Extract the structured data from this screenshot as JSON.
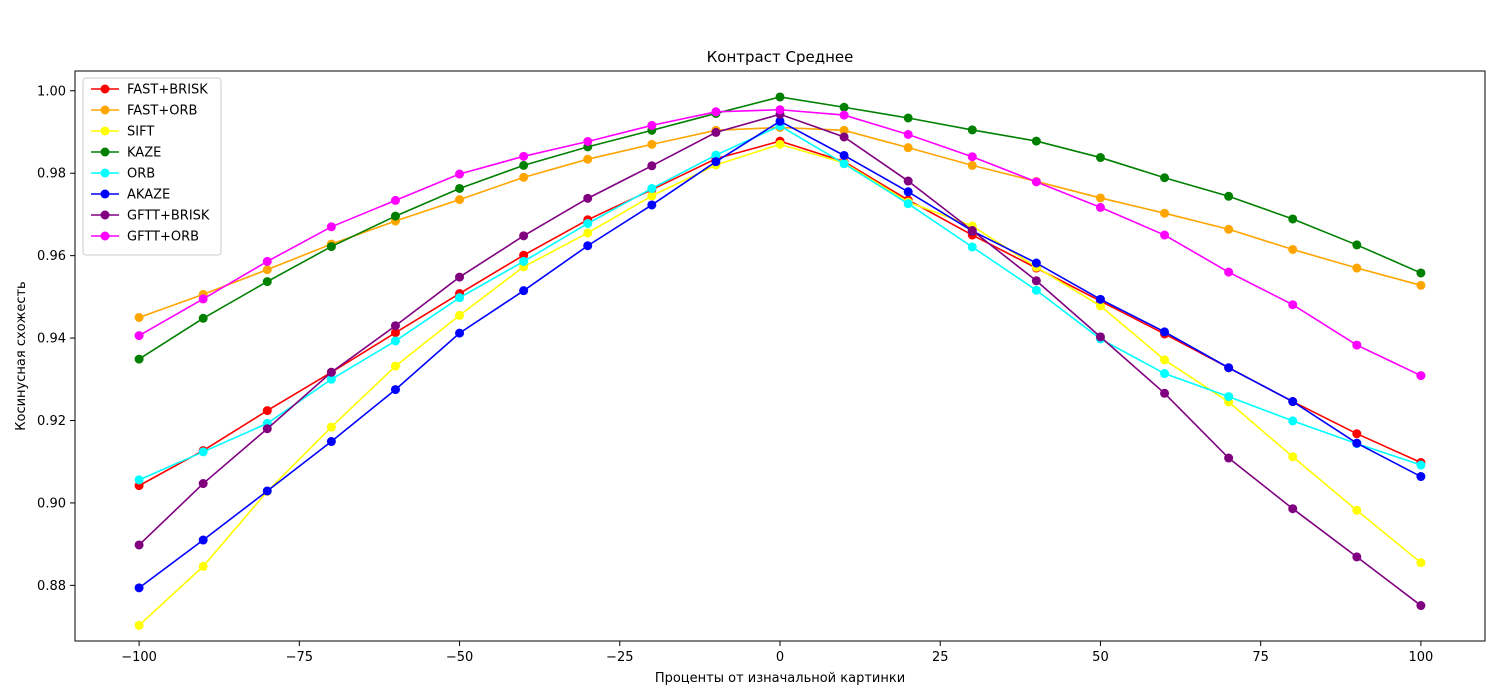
{
  "chart_data": {
    "type": "line",
    "title": "Контраст Среднее",
    "xlabel": "Проценты от изначальной картинки",
    "ylabel": "Косинусная схожесть",
    "xlim": [
      -110,
      110
    ],
    "ylim": [
      0.8665,
      1.0048
    ],
    "xticks": [
      -100,
      -75,
      -50,
      -25,
      0,
      25,
      50,
      75,
      100
    ],
    "yticks": [
      0.88,
      0.9,
      0.92,
      0.94,
      0.96,
      0.98,
      1.0
    ],
    "xtick_labels": [
      "−100",
      "−75",
      "−50",
      "−25",
      "0",
      "25",
      "50",
      "75",
      "100"
    ],
    "ytick_labels": [
      "0.88",
      "0.90",
      "0.92",
      "0.94",
      "0.96",
      "0.98",
      "1.00"
    ],
    "grid": false,
    "legend_position": "top-left",
    "x": [
      -100,
      -90,
      -80,
      -70,
      -60,
      -50,
      -40,
      -30,
      -20,
      -10,
      0,
      10,
      20,
      30,
      40,
      50,
      60,
      70,
      80,
      90,
      100
    ],
    "series": [
      {
        "name": "FAST+BRISK",
        "color": "#ff0000",
        "values": [
          0.9042,
          0.9127,
          0.9224,
          0.9317,
          0.9413,
          0.9508,
          0.9601,
          0.9687,
          0.976,
          0.9835,
          0.9878,
          0.9828,
          0.9735,
          0.965,
          0.957,
          0.949,
          0.941,
          0.9328,
          0.9246,
          0.9168,
          0.9098
        ]
      },
      {
        "name": "FAST+ORB",
        "color": "#ffa500",
        "values": [
          0.945,
          0.9506,
          0.9566,
          0.9628,
          0.9684,
          0.9736,
          0.979,
          0.9834,
          0.987,
          0.9904,
          0.9911,
          0.9904,
          0.9862,
          0.9819,
          0.978,
          0.974,
          0.9703,
          0.9664,
          0.9615,
          0.957,
          0.9528
        ]
      },
      {
        "name": "SIFT",
        "color": "#ffff00",
        "values": [
          0.8703,
          0.8846,
          0.9028,
          0.9184,
          0.9332,
          0.9455,
          0.9573,
          0.9655,
          0.9745,
          0.982,
          0.987,
          0.9825,
          0.973,
          0.9672,
          0.9572,
          0.9478,
          0.9347,
          0.9245,
          0.9112,
          0.8982,
          0.8855
        ]
      },
      {
        "name": "KAZE",
        "color": "#008000",
        "values": [
          0.9349,
          0.9448,
          0.9537,
          0.9622,
          0.9696,
          0.9763,
          0.9819,
          0.9864,
          0.9904,
          0.9945,
          0.9985,
          0.996,
          0.9934,
          0.9905,
          0.9878,
          0.9838,
          0.9789,
          0.9744,
          0.9689,
          0.9626,
          0.9558
        ]
      },
      {
        "name": "ORB",
        "color": "#00ffff",
        "values": [
          0.9056,
          0.9124,
          0.9193,
          0.93,
          0.9393,
          0.9498,
          0.9586,
          0.9678,
          0.9763,
          0.9844,
          0.9915,
          0.9823,
          0.9726,
          0.9621,
          0.9516,
          0.9398,
          0.9314,
          0.9258,
          0.9199,
          0.9144,
          0.9092
        ]
      },
      {
        "name": "AKAZE",
        "color": "#0000ff",
        "values": [
          0.8794,
          0.891,
          0.9029,
          0.9149,
          0.9275,
          0.9412,
          0.9515,
          0.9624,
          0.9723,
          0.9828,
          0.9926,
          0.9843,
          0.9755,
          0.966,
          0.9582,
          0.9494,
          0.9415,
          0.9328,
          0.9246,
          0.9145,
          0.9064
        ]
      },
      {
        "name": "GFTT+BRISK",
        "color": "#800080",
        "values": [
          0.8898,
          0.9047,
          0.918,
          0.9317,
          0.943,
          0.9548,
          0.9648,
          0.9739,
          0.9818,
          0.9899,
          0.9943,
          0.9888,
          0.9781,
          0.9661,
          0.9539,
          0.9403,
          0.9266,
          0.9109,
          0.8986,
          0.8869,
          0.8751
        ]
      },
      {
        "name": "GFTT+ORB",
        "color": "#ff00ff",
        "values": [
          0.9406,
          0.9495,
          0.9586,
          0.967,
          0.9734,
          0.9798,
          0.9841,
          0.9877,
          0.9916,
          0.9949,
          0.9954,
          0.9941,
          0.9894,
          0.984,
          0.9779,
          0.9717,
          0.965,
          0.956,
          0.9481,
          0.9383,
          0.9309
        ]
      }
    ]
  }
}
